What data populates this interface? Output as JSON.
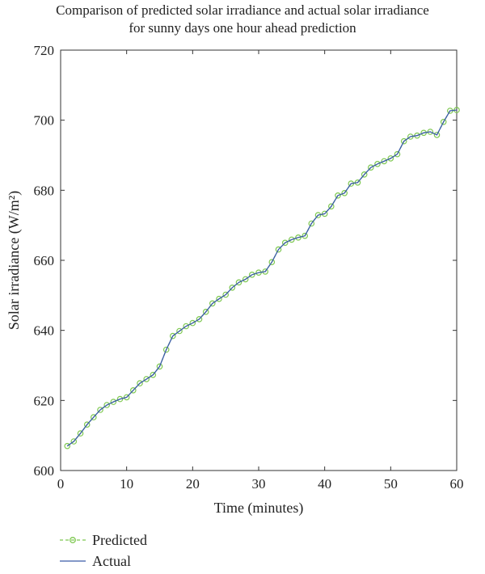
{
  "chart_data": {
    "type": "line",
    "title": "Comparison of predicted solar irradiance and actual solar irradiance for sunny days one hour ahead prediction",
    "title_lines": [
      "Comparison of predicted solar irradiance and actual solar irradiance",
      "for sunny days one hour ahead prediction"
    ],
    "xlabel": "Time (minutes)",
    "ylabel": "Solar irradiance (W/m²)",
    "xlim": [
      0,
      60
    ],
    "ylim": [
      600,
      720
    ],
    "xticks": [
      0,
      10,
      20,
      30,
      40,
      50,
      60
    ],
    "yticks": [
      600,
      620,
      640,
      660,
      680,
      700,
      720
    ],
    "grid": false,
    "legend_position": "below",
    "x": [
      1,
      2,
      3,
      4,
      5,
      6,
      7,
      8,
      9,
      10,
      11,
      12,
      13,
      14,
      15,
      16,
      17,
      18,
      19,
      20,
      21,
      22,
      23,
      24,
      25,
      26,
      27,
      28,
      29,
      30,
      31,
      32,
      33,
      34,
      35,
      36,
      37,
      38,
      39,
      40,
      41,
      42,
      43,
      44,
      45,
      46,
      47,
      48,
      49,
      50,
      51,
      52,
      53,
      54,
      55,
      56,
      57,
      58,
      59,
      60
    ],
    "series": [
      {
        "name": "Predicted",
        "color": "#7ec850",
        "marker": "circle",
        "values": [
          607,
          608.3,
          610.6,
          613.1,
          615.2,
          617.3,
          618.7,
          619.6,
          620.4,
          620.9,
          622.9,
          624.9,
          626.1,
          627.3,
          629.7,
          634.5,
          638.4,
          639.8,
          641.2,
          642.1,
          643.2,
          645.3,
          647.7,
          649,
          650.2,
          652.2,
          653.7,
          654.6,
          655.9,
          656.5,
          656.8,
          659.5,
          663.1,
          665,
          665.9,
          666.5,
          667,
          670.5,
          672.9,
          673.3,
          675.4,
          678.5,
          679.2,
          681.9,
          682.2,
          684.5,
          686.5,
          687.5,
          688.3,
          689.1,
          690.3,
          694,
          695.3,
          695.6,
          696.4,
          696.7,
          695.8,
          699.5,
          702.7,
          702.9
        ]
      },
      {
        "name": "Actual",
        "color": "#3a5ba8",
        "values": [
          607,
          608.3,
          610.6,
          613.1,
          615.2,
          617.3,
          618.7,
          619.6,
          620.4,
          620.9,
          622.9,
          624.9,
          626.1,
          627.3,
          629.7,
          634.5,
          638.4,
          639.8,
          641.2,
          642.1,
          643.2,
          645.3,
          647.7,
          649,
          650.2,
          652.2,
          653.7,
          654.6,
          655.9,
          656.5,
          656.8,
          659.5,
          663.1,
          665,
          665.9,
          666.5,
          667,
          670.5,
          672.9,
          673.3,
          675.4,
          678.5,
          679.2,
          681.9,
          682.2,
          684.5,
          686.5,
          687.5,
          688.3,
          689.1,
          690.3,
          694,
          695.3,
          695.6,
          696.4,
          696.7,
          695.8,
          699.5,
          702.7,
          702.9
        ]
      }
    ]
  }
}
